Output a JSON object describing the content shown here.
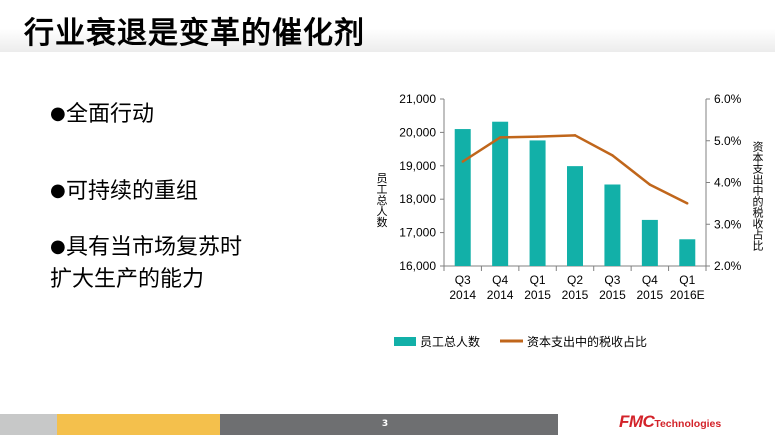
{
  "slide": {
    "title": "行业衰退是变革的催化剂",
    "bullets": [
      {
        "text": "全面行动"
      },
      {
        "text": "可持续的重组"
      },
      {
        "text": "具有当市场复苏时",
        "continuation": "扩大生产的能力"
      }
    ],
    "bullet_symbol": "●",
    "page_number": "3",
    "logo": {
      "brand": "FMC",
      "suffix": "Technologies"
    }
  },
  "colors": {
    "bar": "#12b0a8",
    "line": "#c0661b",
    "axis": "#808080",
    "grid": "#bfbfbf",
    "footer_gray_light": "#c7c8c8",
    "footer_yellow": "#f4c04c",
    "footer_gray_dark": "#6e6f71",
    "brand_red": "#d3232a"
  },
  "chart_data": {
    "type": "bar",
    "categories": [
      [
        "Q3",
        "2014"
      ],
      [
        "Q4",
        "2014"
      ],
      [
        "Q1",
        "2015"
      ],
      [
        "Q2",
        "2015"
      ],
      [
        "Q3",
        "2015"
      ],
      [
        "Q4",
        "2015"
      ],
      [
        "Q1",
        "2016E"
      ]
    ],
    "series": [
      {
        "name": "员工总人数",
        "type": "bar",
        "axis": "left",
        "values": [
          20100,
          20320,
          19760,
          18990,
          18440,
          17380,
          16800
        ]
      },
      {
        "name": "资本支出中的税收占比",
        "type": "line",
        "axis": "right",
        "values": [
          4.5,
          5.08,
          5.1,
          5.13,
          4.65,
          3.95,
          3.5
        ]
      }
    ],
    "ylim_left": [
      16000,
      21000
    ],
    "yticks_left": [
      "16,000",
      "17,000",
      "18,000",
      "19,000",
      "20,000",
      "21,000"
    ],
    "ylim_right": [
      2.0,
      6.0
    ],
    "yticks_right": [
      "2.0%",
      "3.0%",
      "4.0%",
      "5.0%",
      "6.0%"
    ],
    "ylabel_left": "员工总人数",
    "ylabel_right": "资本支出中的税收占比",
    "grid": false,
    "legend": "bottom"
  }
}
